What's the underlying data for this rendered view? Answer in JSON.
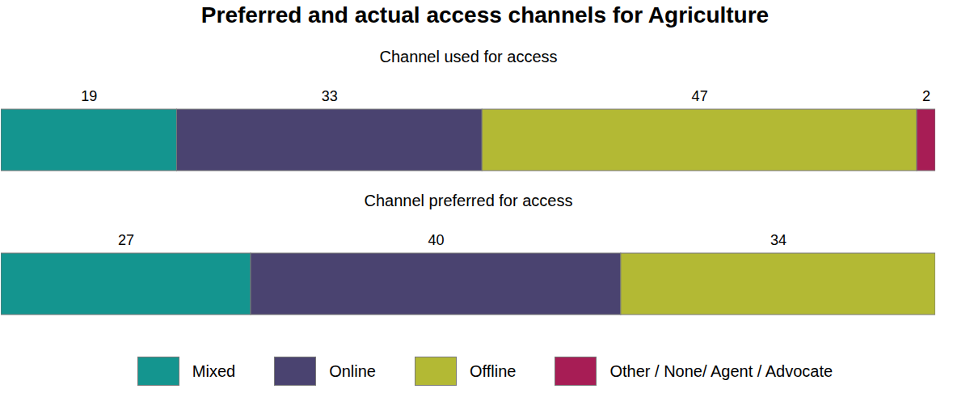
{
  "chart_data": {
    "type": "bar",
    "title": "Preferred and actual access channels for Agriculture",
    "orientation": "horizontal",
    "stacked": true,
    "data_labels": true,
    "tick_labels": false,
    "legend": "bottom",
    "categories": [
      "Channel used for access",
      "Channel preferred for access"
    ],
    "xlim": [
      0,
      101
    ],
    "series": [
      {
        "name": "Mixed",
        "color": "#14958f",
        "values": [
          19,
          27
        ]
      },
      {
        "name": "Online",
        "color": "#4a4370",
        "values": [
          33,
          40
        ]
      },
      {
        "name": "Offline",
        "color": "#b3b934",
        "values": [
          47,
          34
        ]
      },
      {
        "name": "Other / None/ Agent / Advocate",
        "color": "#a71d55",
        "values": [
          2,
          null
        ]
      }
    ]
  }
}
